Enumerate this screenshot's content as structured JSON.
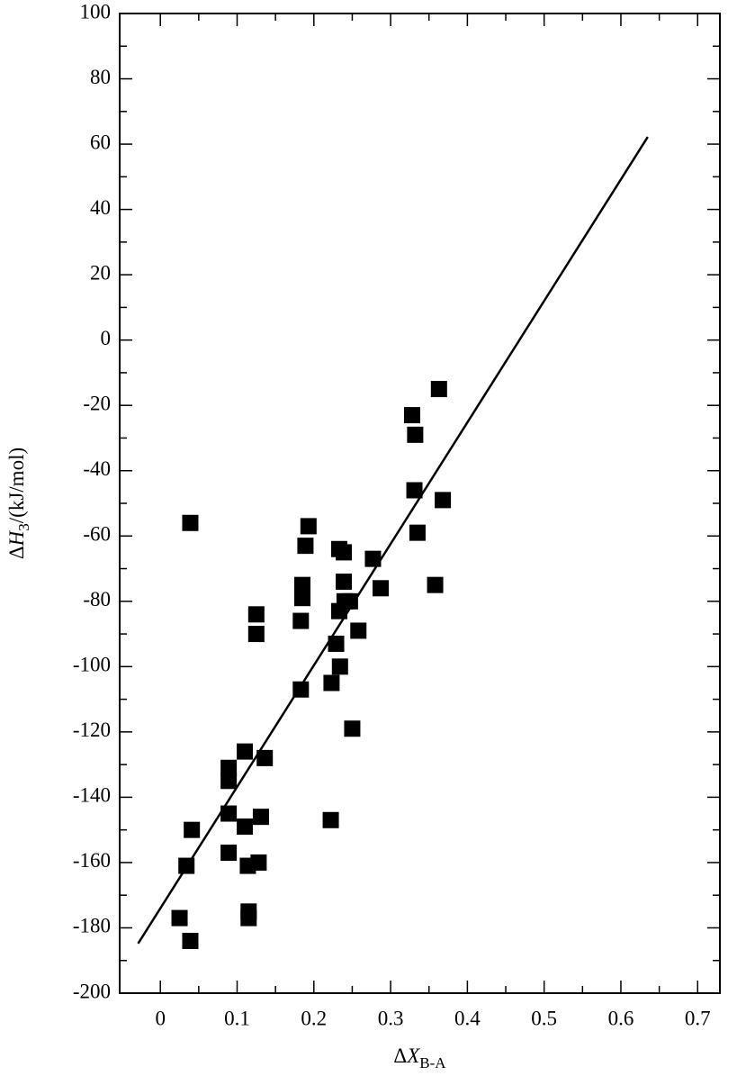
{
  "chart_data": {
    "type": "scatter",
    "xlabel": [
      "Δ",
      "X",
      "B-A"
    ],
    "ylabel": [
      "Δ",
      "H",
      "3",
      "/(kJ/mol)"
    ],
    "xlim": [
      -0.053,
      0.729
    ],
    "ylim": [
      -200,
      100
    ],
    "xticks": [
      0,
      0.1,
      0.2,
      0.3,
      0.4,
      0.5,
      0.6,
      0.7
    ],
    "yticks": [
      -200,
      -180,
      -160,
      -140,
      -120,
      -100,
      -80,
      -60,
      -40,
      -20,
      0,
      20,
      40,
      60,
      80,
      100
    ],
    "grid": false,
    "series": [
      {
        "color": "#000000",
        "marker": "square",
        "x": [
          0.039,
          0.025,
          0.039,
          0.034,
          0.041,
          0.089,
          0.089,
          0.089,
          0.089,
          0.11,
          0.11,
          0.114,
          0.115,
          0.115,
          0.125,
          0.125,
          0.136,
          0.131,
          0.128,
          0.183,
          0.185,
          0.185,
          0.183,
          0.189,
          0.193,
          0.222,
          0.223,
          0.229,
          0.233,
          0.233,
          0.234,
          0.239,
          0.239,
          0.24,
          0.247,
          0.25,
          0.258,
          0.277,
          0.287,
          0.328,
          0.332,
          0.331,
          0.335,
          0.363,
          0.368,
          0.358
        ],
        "values": [
          -56,
          -177,
          -184,
          -161,
          -150,
          -131,
          -135,
          -145,
          -157,
          -126,
          -149,
          -161,
          -175,
          -177,
          -84,
          -90,
          -128,
          -146,
          -160,
          -86,
          -75,
          -79,
          -107,
          -63,
          -57,
          -147,
          -105,
          -93,
          -64,
          -83,
          -100,
          -65,
          -74,
          -80,
          -80,
          -119,
          -89,
          -67,
          -76,
          -23,
          -29,
          -46,
          -59,
          -15,
          -49,
          -75
        ]
      },
      {
        "color": "#000000",
        "marker": "line",
        "x": [
          -0.029,
          0.635
        ],
        "values": [
          -184.8,
          62.2
        ]
      }
    ]
  }
}
